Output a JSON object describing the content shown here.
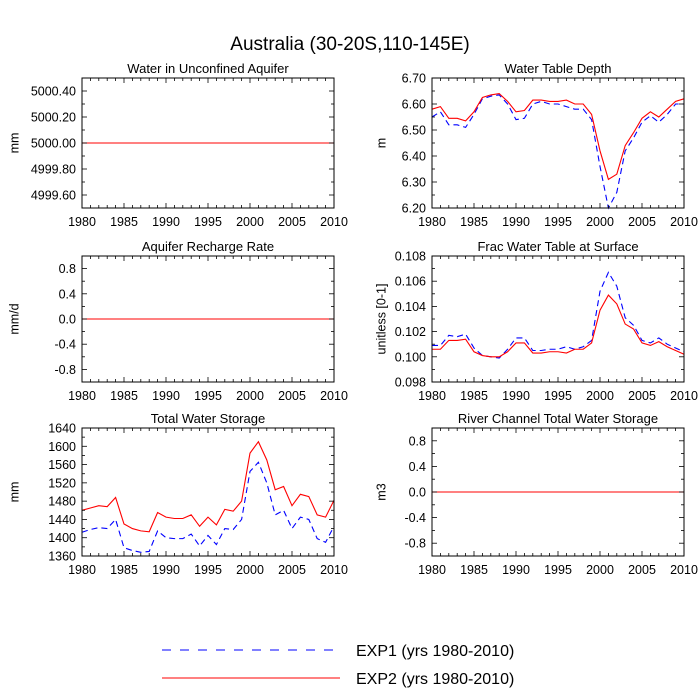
{
  "title": "Australia (30-20S,110-145E)",
  "chart_data": [
    {
      "type": "line",
      "title": "Water in Unconfined Aquifer",
      "ylabel": "mm",
      "xlim": [
        1980,
        2010
      ],
      "xticks": [
        "1980",
        "1985",
        "1990",
        "1995",
        "2000",
        "2005",
        "2010"
      ],
      "ylim": [
        4999.5,
        5000.5
      ],
      "yticks": [
        "5000.40",
        "5000.20",
        "5000.00",
        "4999.80",
        "4999.60"
      ],
      "x": [
        1980,
        2010
      ],
      "series": [
        {
          "name": "EXP1 (yrs 1980-2010)",
          "values": [
            5000,
            5000
          ]
        },
        {
          "name": "EXP2 (yrs 1980-2010)",
          "values": [
            5000,
            5000
          ]
        }
      ]
    },
    {
      "type": "line",
      "title": "Water Table Depth",
      "ylabel": "m",
      "xlim": [
        1980,
        2010
      ],
      "xticks": [
        "1980",
        "1985",
        "1990",
        "1995",
        "2000",
        "2005",
        "2010"
      ],
      "ylim": [
        6.2,
        6.7
      ],
      "yticks": [
        "6.70",
        "6.60",
        "6.50",
        "6.40",
        "6.30",
        "6.20"
      ],
      "x": [
        1980,
        1981,
        1982,
        1983,
        1984,
        1985,
        1986,
        1987,
        1988,
        1989,
        1990,
        1991,
        1992,
        1993,
        1994,
        1995,
        1996,
        1997,
        1998,
        1999,
        2000,
        2001,
        2002,
        2003,
        2004,
        2005,
        2006,
        2007,
        2008,
        2009,
        2010
      ],
      "series": [
        {
          "name": "EXP1 (yrs 1980-2010)",
          "values": [
            6.55,
            6.57,
            6.52,
            6.52,
            6.51,
            6.56,
            6.62,
            6.63,
            6.635,
            6.6,
            6.54,
            6.545,
            6.6,
            6.61,
            6.6,
            6.6,
            6.59,
            6.58,
            6.58,
            6.54,
            6.36,
            6.2,
            6.26,
            6.42,
            6.47,
            6.53,
            6.555,
            6.53,
            6.56,
            6.6,
            6.6
          ]
        },
        {
          "name": "EXP2 (yrs 1980-2010)",
          "values": [
            6.58,
            6.59,
            6.545,
            6.545,
            6.535,
            6.57,
            6.625,
            6.635,
            6.64,
            6.61,
            6.57,
            6.575,
            6.615,
            6.615,
            6.61,
            6.61,
            6.615,
            6.6,
            6.6,
            6.56,
            6.42,
            6.31,
            6.33,
            6.44,
            6.49,
            6.545,
            6.57,
            6.55,
            6.58,
            6.61,
            6.62
          ]
        }
      ]
    },
    {
      "type": "line",
      "title": "Aquifer Recharge Rate",
      "ylabel": "mm/d",
      "xlim": [
        1980,
        2010
      ],
      "xticks": [
        "1980",
        "1985",
        "1990",
        "1995",
        "2000",
        "2005",
        "2010"
      ],
      "ylim": [
        -1.0,
        1.0
      ],
      "yticks": [
        "0.8",
        "0.4",
        "0.0",
        "-0.4",
        "-0.8"
      ],
      "x": [
        1980,
        2010
      ],
      "series": [
        {
          "name": "EXP1 (yrs 1980-2010)",
          "values": [
            0,
            0
          ]
        },
        {
          "name": "EXP2 (yrs 1980-2010)",
          "values": [
            0,
            0
          ]
        }
      ]
    },
    {
      "type": "line",
      "title": "Frac Water Table at Surface",
      "ylabel": "unitless [0-1]",
      "xlim": [
        1980,
        2010
      ],
      "xticks": [
        "1980",
        "1985",
        "1990",
        "1995",
        "2000",
        "2005",
        "2010"
      ],
      "ylim": [
        0.098,
        0.108
      ],
      "yticks": [
        "0.108",
        "0.106",
        "0.104",
        "0.102",
        "0.100",
        "0.098"
      ],
      "x": [
        1980,
        1981,
        1982,
        1983,
        1984,
        1985,
        1986,
        1987,
        1988,
        1989,
        1990,
        1991,
        1992,
        1993,
        1994,
        1995,
        1996,
        1997,
        1998,
        1999,
        2000,
        2001,
        2002,
        2003,
        2004,
        2005,
        2006,
        2007,
        2008,
        2009,
        2010
      ],
      "series": [
        {
          "name": "EXP1 (yrs 1980-2010)",
          "values": [
            0.1009,
            0.1009,
            0.1017,
            0.1016,
            0.1018,
            0.1007,
            0.1001,
            0.1,
            0.0999,
            0.1006,
            0.1015,
            0.1015,
            0.1005,
            0.1005,
            0.1006,
            0.1006,
            0.1008,
            0.1006,
            0.1008,
            0.1013,
            0.1052,
            0.1067,
            0.1056,
            0.1031,
            0.1025,
            0.1013,
            0.1011,
            0.1015,
            0.101,
            0.1007,
            0.1004
          ]
        },
        {
          "name": "EXP2 (yrs 1980-2010)",
          "values": [
            0.1006,
            0.1006,
            0.1013,
            0.1013,
            0.1014,
            0.1004,
            0.1001,
            0.1,
            0.1,
            0.1004,
            0.1011,
            0.1011,
            0.1003,
            0.1003,
            0.1004,
            0.1004,
            0.1003,
            0.1006,
            0.1006,
            0.1011,
            0.1037,
            0.1049,
            0.1042,
            0.1026,
            0.1022,
            0.1011,
            0.1009,
            0.1012,
            0.1008,
            0.1005,
            0.1002
          ]
        }
      ]
    },
    {
      "type": "line",
      "title": "Total Water Storage",
      "ylabel": "mm",
      "xlim": [
        1980,
        2010
      ],
      "xticks": [
        "1980",
        "1985",
        "1990",
        "1995",
        "2000",
        "2005",
        "2010"
      ],
      "ylim": [
        1360,
        1640
      ],
      "yticks": [
        "1640",
        "1600",
        "1560",
        "1520",
        "1480",
        "1440",
        "1400",
        "1360"
      ],
      "x": [
        1980,
        1981,
        1982,
        1983,
        1984,
        1985,
        1986,
        1987,
        1988,
        1989,
        1990,
        1991,
        1992,
        1993,
        1994,
        1995,
        1996,
        1997,
        1998,
        1999,
        2000,
        2001,
        2002,
        2003,
        2004,
        2005,
        2006,
        2007,
        2008,
        2009,
        2010
      ],
      "series": [
        {
          "name": "EXP1 (yrs 1980-2010)",
          "values": [
            1412,
            1418,
            1422,
            1420,
            1440,
            1378,
            1372,
            1368,
            1370,
            1415,
            1400,
            1398,
            1398,
            1408,
            1382,
            1405,
            1385,
            1420,
            1418,
            1440,
            1545,
            1565,
            1520,
            1450,
            1460,
            1420,
            1445,
            1440,
            1398,
            1390,
            1425
          ]
        },
        {
          "name": "EXP2 (yrs 1980-2010)",
          "values": [
            1460,
            1465,
            1470,
            1468,
            1488,
            1430,
            1420,
            1415,
            1413,
            1455,
            1445,
            1442,
            1442,
            1450,
            1425,
            1445,
            1428,
            1462,
            1458,
            1480,
            1585,
            1610,
            1570,
            1505,
            1512,
            1470,
            1495,
            1490,
            1450,
            1445,
            1482
          ]
        }
      ]
    },
    {
      "type": "line",
      "title": "River Channel Total Water Storage",
      "ylabel": "m3",
      "xlim": [
        1980,
        2010
      ],
      "xticks": [
        "1980",
        "1985",
        "1990",
        "1995",
        "2000",
        "2005",
        "2010"
      ],
      "ylim": [
        -1.0,
        1.0
      ],
      "yticks": [
        "0.8",
        "0.4",
        "0.0",
        "-0.4",
        "-0.8"
      ],
      "x": [
        1980,
        2010
      ],
      "series": [
        {
          "name": "EXP1 (yrs 1980-2010)",
          "values": [
            0,
            0
          ]
        },
        {
          "name": "EXP2 (yrs 1980-2010)",
          "values": [
            0,
            0
          ]
        }
      ]
    }
  ],
  "legend": [
    {
      "label": "EXP1 (yrs 1980-2010)",
      "color": "#0000ff",
      "dash": "dashed"
    },
    {
      "label": "EXP2 (yrs 1980-2010)",
      "color": "#ff0000",
      "dash": "solid"
    }
  ],
  "colors": {
    "exp1": "#0000ff",
    "exp2": "#ff0000"
  }
}
